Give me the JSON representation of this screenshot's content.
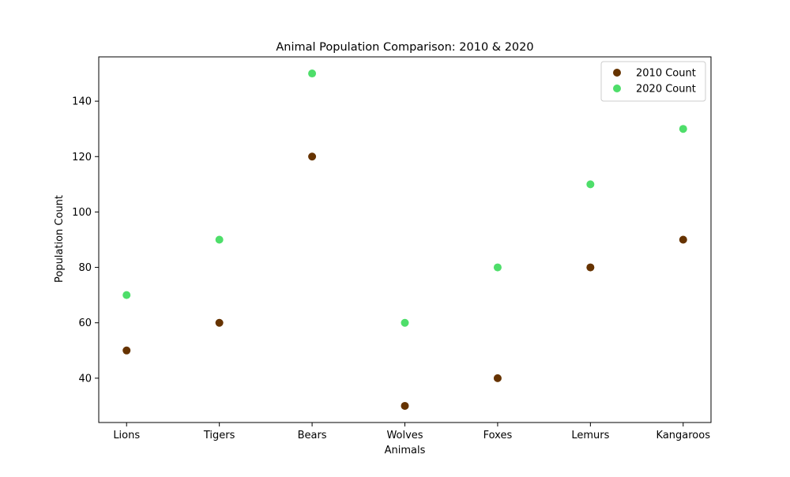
{
  "chart_data": {
    "type": "scatter",
    "title": "Animal Population Comparison: 2010 & 2020",
    "xlabel": "Animals",
    "ylabel": "Population Count",
    "categories": [
      "Lions",
      "Tigers",
      "Bears",
      "Wolves",
      "Foxes",
      "Lemurs",
      "Kangaroos"
    ],
    "ylim": [
      24,
      156
    ],
    "yticks": [
      40,
      60,
      80,
      100,
      120,
      140
    ],
    "grid": false,
    "legend_position": "top-right",
    "series": [
      {
        "name": "2010 Count",
        "color": "#663300",
        "values": [
          50,
          60,
          120,
          30,
          40,
          80,
          90
        ]
      },
      {
        "name": "2020 Count",
        "color": "#4ede6a",
        "values": [
          70,
          90,
          150,
          60,
          80,
          110,
          130
        ]
      }
    ]
  }
}
